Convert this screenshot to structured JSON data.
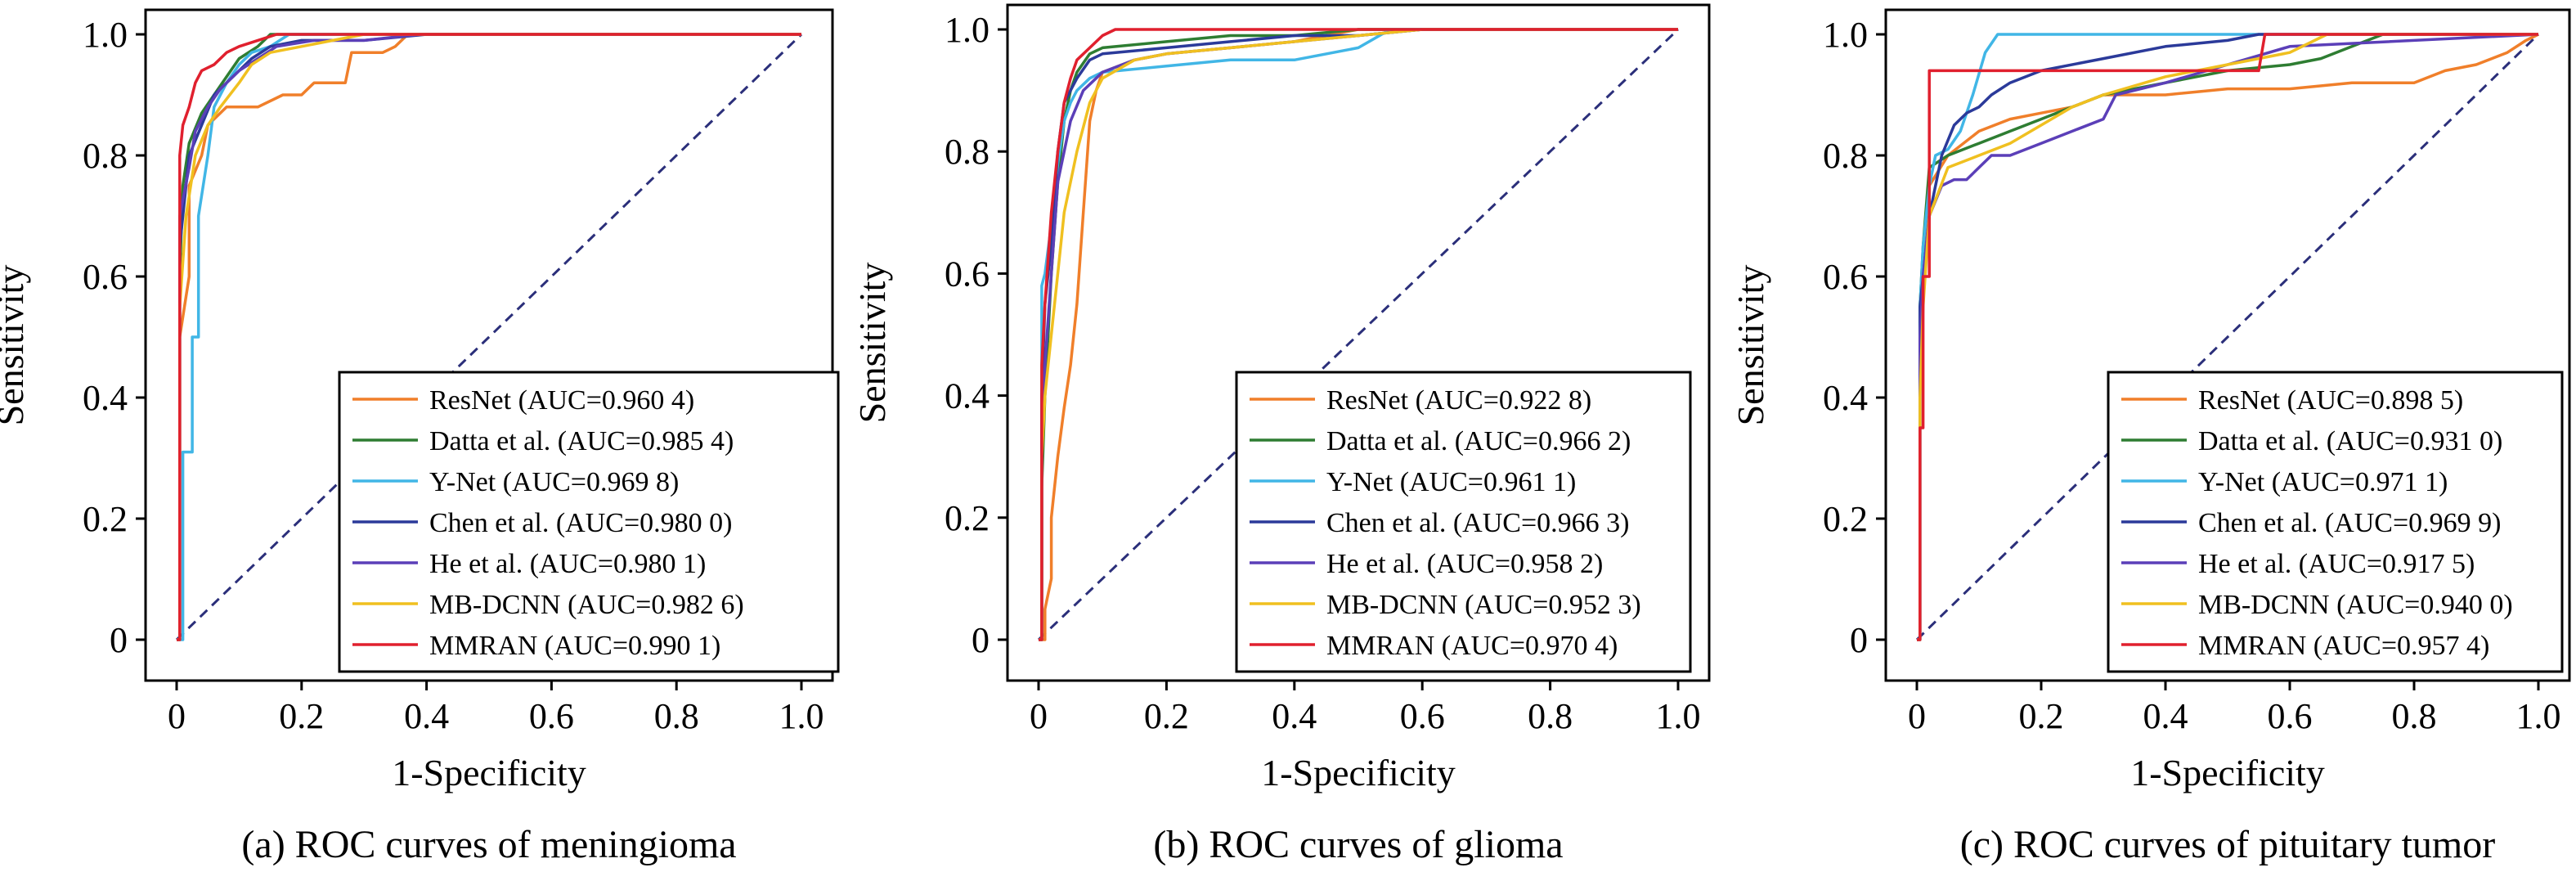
{
  "chart_data": [
    {
      "type": "line",
      "caption": "(a) ROC curves of meningioma",
      "xlabel": "1-Specificity",
      "ylabel": "Sensitivity",
      "xlim": [
        0,
        1
      ],
      "ylim": [
        0,
        1
      ],
      "ticks": [
        "0",
        "0.2",
        "0.4",
        "0.6",
        "0.8",
        "1.0"
      ],
      "legend_position": "bottom-right",
      "series": [
        {
          "name": "ResNet (AUC=0.960 4)",
          "color": "#f07f2a",
          "x": [
            0,
            0.005,
            0.005,
            0.02,
            0.02,
            0.04,
            0.05,
            0.08,
            0.1,
            0.13,
            0.17,
            0.2,
            0.22,
            0.27,
            0.28,
            0.33,
            0.35,
            0.37,
            1.0
          ],
          "y": [
            0,
            0,
            0.5,
            0.6,
            0.75,
            0.8,
            0.85,
            0.88,
            0.88,
            0.88,
            0.9,
            0.9,
            0.92,
            0.92,
            0.97,
            0.97,
            0.98,
            1.0,
            1.0
          ]
        },
        {
          "name": "Datta et al. (AUC=0.985 4)",
          "color": "#2e7d32",
          "x": [
            0,
            0.005,
            0.005,
            0.01,
            0.02,
            0.04,
            0.06,
            0.08,
            0.1,
            0.13,
            0.15,
            1.0
          ],
          "y": [
            0,
            0,
            0.6,
            0.75,
            0.82,
            0.87,
            0.9,
            0.93,
            0.96,
            0.98,
            1.0,
            1.0
          ]
        },
        {
          "name": "Y-Net (AUC=0.969 8)",
          "color": "#41b6e6",
          "x": [
            0,
            0.01,
            0.01,
            0.025,
            0.025,
            0.035,
            0.035,
            0.05,
            0.06,
            0.08,
            0.1,
            0.12,
            0.15,
            0.18,
            1.0
          ],
          "y": [
            0,
            0,
            0.31,
            0.31,
            0.5,
            0.5,
            0.7,
            0.8,
            0.88,
            0.92,
            0.95,
            0.97,
            0.98,
            1.0,
            1.0
          ]
        },
        {
          "name": "Chen et al. (AUC=0.980 0)",
          "color": "#2b3a9a",
          "x": [
            0,
            0.005,
            0.005,
            0.02,
            0.04,
            0.06,
            0.09,
            0.12,
            0.15,
            0.2,
            0.3,
            0.4,
            1.0
          ],
          "y": [
            0,
            0,
            0.65,
            0.8,
            0.85,
            0.9,
            0.93,
            0.96,
            0.98,
            0.99,
            0.99,
            1.0,
            1.0
          ]
        },
        {
          "name": "He et al. (AUC=0.980 1)",
          "color": "#5b3fb8",
          "x": [
            0,
            0.005,
            0.005,
            0.02,
            0.03,
            0.05,
            0.07,
            0.1,
            0.13,
            0.16,
            0.22,
            0.3,
            0.39,
            1.0
          ],
          "y": [
            0,
            0,
            0.7,
            0.78,
            0.84,
            0.88,
            0.91,
            0.94,
            0.96,
            0.98,
            0.99,
            0.99,
            1.0,
            1.0
          ]
        },
        {
          "name": "MB-DCNN (AUC=0.982 6)",
          "color": "#f0c020",
          "x": [
            0,
            0.005,
            0.005,
            0.015,
            0.03,
            0.05,
            0.07,
            0.1,
            0.12,
            0.15,
            0.2,
            0.25,
            0.3,
            1.0
          ],
          "y": [
            0,
            0,
            0.55,
            0.7,
            0.8,
            0.85,
            0.88,
            0.92,
            0.95,
            0.97,
            0.98,
            0.99,
            1.0,
            1.0
          ]
        },
        {
          "name": "MMRAN (AUC=0.990 1)",
          "color": "#e0202e",
          "x": [
            0,
            0.005,
            0.005,
            0.01,
            0.02,
            0.03,
            0.04,
            0.06,
            0.08,
            0.1,
            0.13,
            0.16,
            1.0
          ],
          "y": [
            0,
            0,
            0.8,
            0.85,
            0.88,
            0.92,
            0.94,
            0.95,
            0.97,
            0.98,
            0.99,
            1.0,
            1.0
          ]
        }
      ]
    },
    {
      "type": "line",
      "caption": "(b) ROC curves of glioma",
      "xlabel": "1-Specificity",
      "ylabel": "Sensitivity",
      "xlim": [
        0,
        1
      ],
      "ylim": [
        0,
        1
      ],
      "ticks": [
        "0",
        "0.2",
        "0.4",
        "0.6",
        "0.8",
        "1.0"
      ],
      "legend_position": "bottom-right",
      "series": [
        {
          "name": "ResNet (AUC=0.922 8)",
          "color": "#f07f2a",
          "x": [
            0,
            0.01,
            0.01,
            0.02,
            0.02,
            0.03,
            0.04,
            0.05,
            0.06,
            0.07,
            0.08,
            0.09,
            0.1,
            0.15,
            0.2,
            0.3,
            0.4,
            0.5,
            1.0
          ],
          "y": [
            0,
            0,
            0.05,
            0.1,
            0.2,
            0.3,
            0.38,
            0.45,
            0.55,
            0.7,
            0.85,
            0.9,
            0.93,
            0.95,
            0.96,
            0.97,
            0.98,
            1.0,
            1.0
          ]
        },
        {
          "name": "Datta et al. (AUC=0.966 2)",
          "color": "#2e7d32",
          "x": [
            0,
            0.005,
            0.005,
            0.01,
            0.02,
            0.03,
            0.04,
            0.05,
            0.06,
            0.08,
            0.1,
            0.2,
            0.3,
            0.4,
            0.5,
            0.58,
            1.0
          ],
          "y": [
            0,
            0,
            0.25,
            0.4,
            0.6,
            0.75,
            0.85,
            0.9,
            0.93,
            0.96,
            0.97,
            0.98,
            0.99,
            0.99,
            1.0,
            1.0,
            1.0
          ]
        },
        {
          "name": "Y-Net (AUC=0.961 1)",
          "color": "#41b6e6",
          "x": [
            0,
            0.005,
            0.005,
            0.01,
            0.02,
            0.03,
            0.04,
            0.05,
            0.06,
            0.08,
            0.1,
            0.2,
            0.3,
            0.4,
            0.5,
            0.55,
            1.0
          ],
          "y": [
            0,
            0,
            0.58,
            0.6,
            0.68,
            0.78,
            0.85,
            0.88,
            0.9,
            0.92,
            0.93,
            0.94,
            0.95,
            0.95,
            0.97,
            1.0,
            1.0
          ]
        },
        {
          "name": "Chen et al. (AUC=0.966 3)",
          "color": "#2b3a9a",
          "x": [
            0,
            0.005,
            0.005,
            0.01,
            0.02,
            0.03,
            0.04,
            0.06,
            0.08,
            0.1,
            0.2,
            0.3,
            0.4,
            0.5,
            0.6,
            1.0
          ],
          "y": [
            0,
            0,
            0.4,
            0.55,
            0.65,
            0.8,
            0.88,
            0.92,
            0.95,
            0.96,
            0.97,
            0.98,
            0.99,
            0.99,
            1.0,
            1.0
          ]
        },
        {
          "name": "He et al. (AUC=0.958 2)",
          "color": "#5b3fb8",
          "x": [
            0,
            0.005,
            0.005,
            0.01,
            0.02,
            0.03,
            0.05,
            0.07,
            0.1,
            0.15,
            0.2,
            0.3,
            0.4,
            0.5,
            0.6,
            1.0
          ],
          "y": [
            0,
            0,
            0.35,
            0.45,
            0.6,
            0.75,
            0.85,
            0.9,
            0.93,
            0.95,
            0.96,
            0.97,
            0.98,
            0.99,
            1.0,
            1.0
          ]
        },
        {
          "name": "MB-DCNN (AUC=0.952 3)",
          "color": "#f0c020",
          "x": [
            0,
            0.005,
            0.005,
            0.01,
            0.02,
            0.03,
            0.04,
            0.06,
            0.08,
            0.1,
            0.15,
            0.2,
            0.3,
            0.4,
            0.5,
            0.6,
            1.0
          ],
          "y": [
            0,
            0,
            0.3,
            0.4,
            0.5,
            0.6,
            0.7,
            0.8,
            0.88,
            0.92,
            0.95,
            0.96,
            0.97,
            0.98,
            0.99,
            1.0,
            1.0
          ]
        },
        {
          "name": "MMRAN (AUC=0.970 4)",
          "color": "#e0202e",
          "x": [
            0,
            0.005,
            0.005,
            0.01,
            0.02,
            0.03,
            0.04,
            0.05,
            0.06,
            0.08,
            0.1,
            0.12,
            0.2,
            0.3,
            1.0
          ],
          "y": [
            0,
            0,
            0.45,
            0.55,
            0.7,
            0.8,
            0.88,
            0.92,
            0.95,
            0.97,
            0.99,
            1.0,
            1.0,
            1.0,
            1.0
          ]
        }
      ]
    },
    {
      "type": "line",
      "caption": "(c) ROC curves of pituitary tumor",
      "xlabel": "1-Specificity",
      "ylabel": "Sensitivity",
      "xlim": [
        0,
        1
      ],
      "ylim": [
        0,
        1
      ],
      "ticks": [
        "0",
        "0.2",
        "0.4",
        "0.6",
        "0.8",
        "1.0"
      ],
      "legend_position": "bottom-right",
      "series": [
        {
          "name": "ResNet (AUC=0.898 5)",
          "color": "#f07f2a",
          "x": [
            0,
            0.005,
            0.005,
            0.01,
            0.02,
            0.05,
            0.1,
            0.15,
            0.2,
            0.25,
            0.3,
            0.4,
            0.5,
            0.6,
            0.7,
            0.8,
            0.85,
            0.9,
            0.95,
            0.98,
            1.0
          ],
          "y": [
            0,
            0,
            0.5,
            0.6,
            0.75,
            0.8,
            0.84,
            0.86,
            0.87,
            0.88,
            0.9,
            0.9,
            0.91,
            0.91,
            0.92,
            0.92,
            0.94,
            0.95,
            0.97,
            0.99,
            1.0
          ]
        },
        {
          "name": "Datta et al. (AUC=0.931 0)",
          "color": "#2e7d32",
          "x": [
            0,
            0.005,
            0.005,
            0.01,
            0.02,
            0.05,
            0.1,
            0.15,
            0.2,
            0.25,
            0.3,
            0.35,
            0.4,
            0.5,
            0.6,
            0.65,
            0.7,
            0.75,
            1.0
          ],
          "y": [
            0,
            0,
            0.55,
            0.65,
            0.78,
            0.8,
            0.82,
            0.84,
            0.86,
            0.88,
            0.9,
            0.91,
            0.92,
            0.94,
            0.95,
            0.96,
            0.98,
            1.0,
            1.0
          ]
        },
        {
          "name": "Y-Net (AUC=0.971 1)",
          "color": "#41b6e6",
          "x": [
            0,
            0.005,
            0.005,
            0.01,
            0.02,
            0.03,
            0.05,
            0.07,
            0.09,
            0.11,
            0.13,
            1.0
          ],
          "y": [
            0,
            0,
            0.55,
            0.65,
            0.75,
            0.8,
            0.81,
            0.84,
            0.9,
            0.97,
            1.0,
            1.0
          ]
        },
        {
          "name": "Chen et al. (AUC=0.969 9)",
          "color": "#2b3a9a",
          "x": [
            0,
            0.005,
            0.005,
            0.01,
            0.02,
            0.04,
            0.06,
            0.08,
            0.1,
            0.12,
            0.15,
            0.2,
            0.3,
            0.4,
            0.5,
            0.55,
            1.0
          ],
          "y": [
            0,
            0,
            0.55,
            0.6,
            0.7,
            0.8,
            0.85,
            0.87,
            0.88,
            0.9,
            0.92,
            0.94,
            0.96,
            0.98,
            0.99,
            1.0,
            1.0
          ]
        },
        {
          "name": "He et al. (AUC=0.917 5)",
          "color": "#5b3fb8",
          "x": [
            0,
            0.005,
            0.005,
            0.01,
            0.02,
            0.04,
            0.06,
            0.08,
            0.1,
            0.12,
            0.15,
            0.2,
            0.25,
            0.3,
            0.32,
            0.4,
            0.5,
            0.6,
            1.0
          ],
          "y": [
            0,
            0,
            0.5,
            0.6,
            0.7,
            0.75,
            0.76,
            0.76,
            0.78,
            0.8,
            0.8,
            0.82,
            0.84,
            0.86,
            0.9,
            0.92,
            0.95,
            0.98,
            1.0
          ]
        },
        {
          "name": "MB-DCNN (AUC=0.940 0)",
          "color": "#f0c020",
          "x": [
            0,
            0.005,
            0.005,
            0.01,
            0.02,
            0.05,
            0.1,
            0.15,
            0.2,
            0.25,
            0.3,
            0.4,
            0.5,
            0.6,
            0.66,
            1.0
          ],
          "y": [
            0,
            0,
            0.4,
            0.55,
            0.7,
            0.78,
            0.8,
            0.82,
            0.85,
            0.88,
            0.9,
            0.93,
            0.95,
            0.97,
            1.0,
            1.0
          ]
        },
        {
          "name": "MMRAN (AUC=0.957 4)",
          "color": "#e0202e",
          "x": [
            0,
            0.005,
            0.005,
            0.01,
            0.01,
            0.02,
            0.02,
            0.03,
            0.55,
            0.56,
            0.6,
            0.65,
            0.7,
            1.0
          ],
          "y": [
            0,
            0,
            0.35,
            0.35,
            0.6,
            0.6,
            0.94,
            0.94,
            0.94,
            1.0,
            1.0,
            1.0,
            1.0,
            1.0
          ]
        }
      ]
    }
  ]
}
